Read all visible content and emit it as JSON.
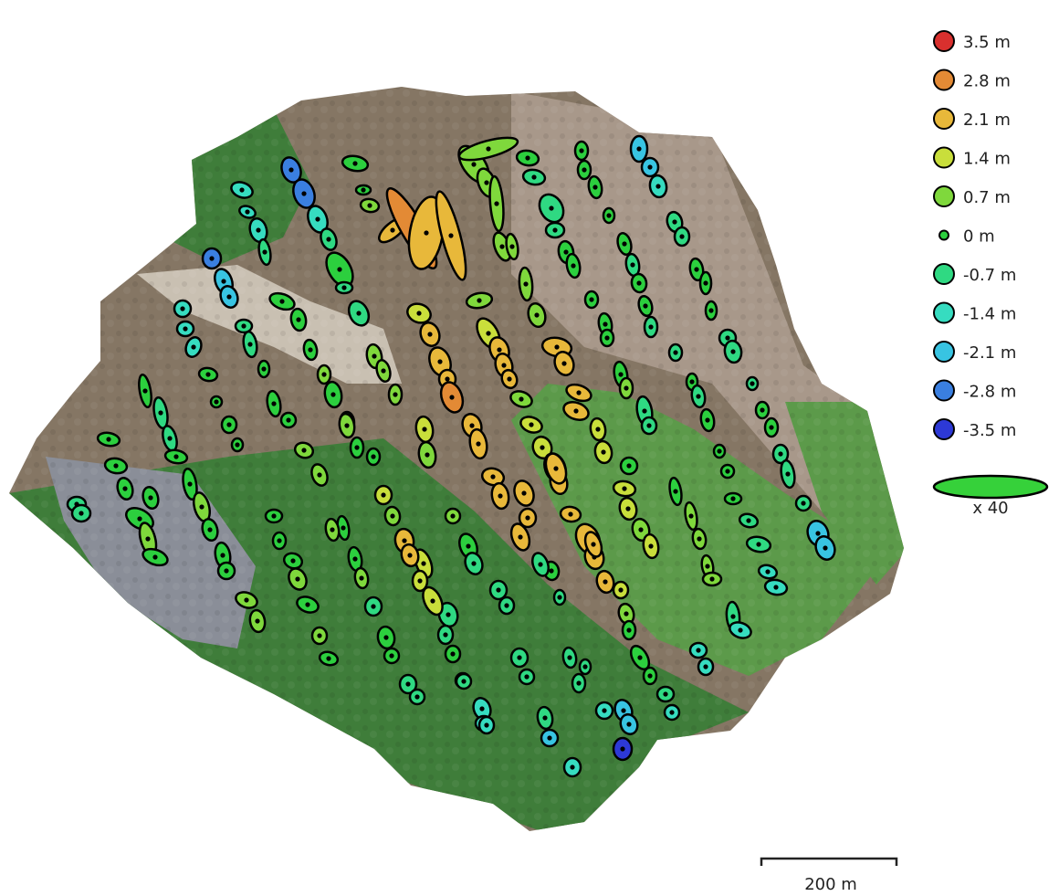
{
  "legend": {
    "items": [
      {
        "label": "3.5 m",
        "color": "#d9302e"
      },
      {
        "label": "2.8 m",
        "color": "#e38a35"
      },
      {
        "label": "2.1 m",
        "color": "#e8b83a"
      },
      {
        "label": "1.4 m",
        "color": "#c9de3b"
      },
      {
        "label": "0.7 m",
        "color": "#7fd83c"
      },
      {
        "label": "0 m",
        "color": "#2ccf3e"
      },
      {
        "label": "-0.7 m",
        "color": "#2fd982"
      },
      {
        "label": "-1.4 m",
        "color": "#36dcc0"
      },
      {
        "label": "-2.1 m",
        "color": "#38c4e2"
      },
      {
        "label": "-2.8 m",
        "color": "#3a7fe0"
      },
      {
        "label": "-3.5 m",
        "color": "#2d39d6"
      }
    ],
    "scale_factor": "x 40",
    "scale_ellipse_color": "#36d13a"
  },
  "scalebar": {
    "label": "200 m"
  },
  "colors": {
    "water": "#857664",
    "water_light": "#a8988a",
    "vegetation": "#3f7d3a",
    "vegetation_light": "#5c9a4a",
    "sand": "#c9c0b2",
    "town": "#8a8e98"
  },
  "markers": [
    {
      "e": 0.0,
      "r": -2.6
    },
    {
      "e": 0.3,
      "r": -2.5
    },
    {
      "e": 0.1,
      "r": -1.0
    },
    {
      "e": 0.0,
      "r": -1.3
    },
    {
      "e": 0.1,
      "r": -2.0
    },
    {
      "e": 0.0,
      "r": -2.4
    },
    {
      "e": 0.2,
      "r": 0.2
    },
    {
      "e": 0.4,
      "r": 0.5
    },
    {
      "e": 0.1,
      "r": 2.3
    },
    {
      "e": 0.2,
      "r": 1.4
    },
    {
      "e": 0.3,
      "r": 2.0
    },
    {
      "e": 0.5,
      "r": 0.3
    }
  ]
}
